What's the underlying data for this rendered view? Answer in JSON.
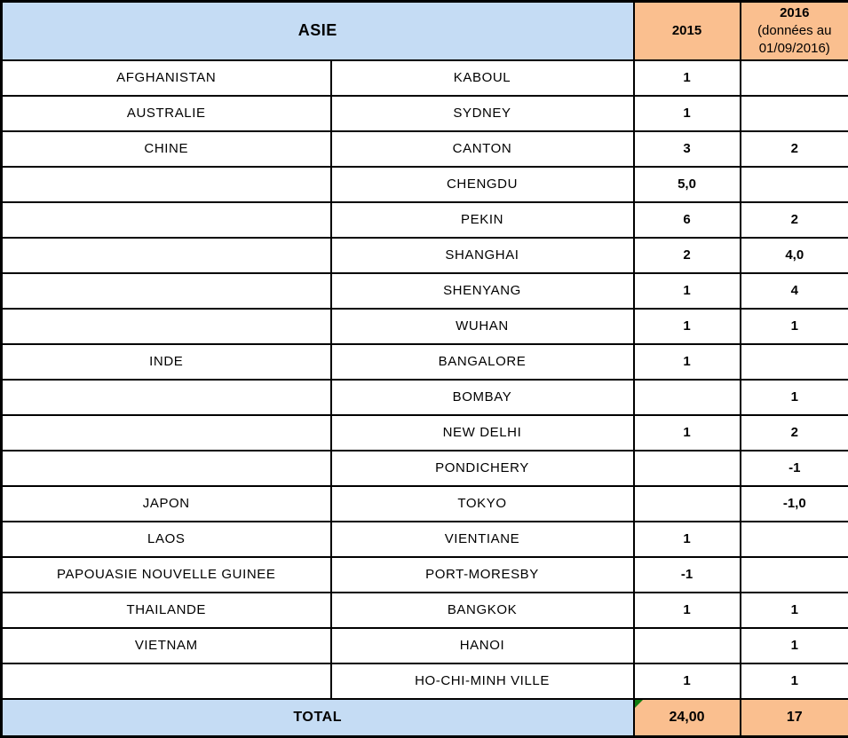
{
  "chart_data": {
    "type": "table",
    "title": "ASIE",
    "header": {
      "region": "ASIE",
      "col_2015": "2015",
      "col_2016": {
        "line1": "2016",
        "line2": "(données au",
        "line3": "01/09/2016)"
      }
    },
    "column_roles": [
      "country",
      "city",
      "2015",
      "2016"
    ],
    "rows": [
      {
        "country": "AFGHANISTAN",
        "city": "KABOUL",
        "y2015": "1",
        "y2016": ""
      },
      {
        "country": "AUSTRALIE",
        "city": "SYDNEY",
        "y2015": "1",
        "y2016": ""
      },
      {
        "country": "CHINE",
        "city": "CANTON",
        "y2015": "3",
        "y2016": "2"
      },
      {
        "country": "",
        "city": "CHENGDU",
        "y2015": "5,0",
        "y2016": ""
      },
      {
        "country": "",
        "city": "PEKIN",
        "y2015": "6",
        "y2016": "2"
      },
      {
        "country": "",
        "city": "SHANGHAI",
        "y2015": "2",
        "y2016": "4,0"
      },
      {
        "country": "",
        "city": "SHENYANG",
        "y2015": "1",
        "y2016": "4"
      },
      {
        "country": "",
        "city": "WUHAN",
        "y2015": "1",
        "y2016": "1"
      },
      {
        "country": "INDE",
        "city": "BANGALORE",
        "y2015": "1",
        "y2016": ""
      },
      {
        "country": "",
        "city": "BOMBAY",
        "y2015": "",
        "y2016": "1"
      },
      {
        "country": "",
        "city": "NEW DELHI",
        "y2015": "1",
        "y2016": "2"
      },
      {
        "country": "",
        "city": "PONDICHERY",
        "y2015": "",
        "y2016": "-1"
      },
      {
        "country": "JAPON",
        "city": "TOKYO",
        "y2015": "",
        "y2016": "-1,0"
      },
      {
        "country": "LAOS",
        "city": "VIENTIANE",
        "y2015": "1",
        "y2016": ""
      },
      {
        "country": "PAPOUASIE NOUVELLE GUINEE",
        "city": "PORT-MORESBY",
        "y2015": "-1",
        "y2016": ""
      },
      {
        "country": "THAILANDE",
        "city": "BANGKOK",
        "y2015": "1",
        "y2016": "1"
      },
      {
        "country": "VIETNAM",
        "city": "HANOI",
        "y2015": "",
        "y2016": "1"
      },
      {
        "country": "",
        "city": "HO-CHI-MINH VILLE",
        "y2015": "1",
        "y2016": "1"
      }
    ],
    "total": {
      "label": "TOTAL",
      "y2015": "24,00",
      "y2016": "17"
    }
  },
  "colors": {
    "header_blue": "#C5DCF4",
    "header_orange": "#FABF8F",
    "border_black": "#000000",
    "formula_flag_green": "#107C10"
  }
}
